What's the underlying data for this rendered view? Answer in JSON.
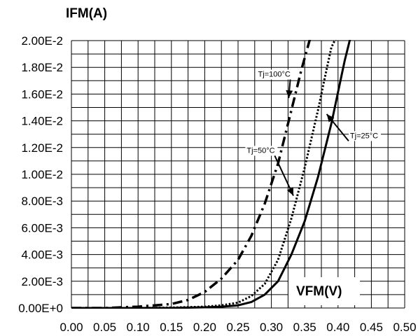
{
  "chart_data": {
    "type": "line",
    "ylabel": "IFM(A)",
    "xlabel": "VFM(V)",
    "xlim": [
      0,
      0.5
    ],
    "ylim": [
      0,
      0.02
    ],
    "grid": true,
    "x_ticks": [
      "0.00",
      "0.05",
      "0.10",
      "0.15",
      "0.20",
      "0.25",
      "0.30",
      "0.35",
      "0.40",
      "0.45",
      "0.50"
    ],
    "y_ticks": [
      "0.00E+0",
      "2.00E-3",
      "4.00E-3",
      "6.00E-3",
      "8.00E-3",
      "1.00E-2",
      "1.20E-2",
      "1.40E-2",
      "1.60E-2",
      "1.80E-2",
      "2.00E-2"
    ],
    "series": [
      {
        "name": "Tj=25°C",
        "style": "solid",
        "x": [
          0.0,
          0.1,
          0.15,
          0.2,
          0.225,
          0.25,
          0.27,
          0.29,
          0.31,
          0.33,
          0.35,
          0.37,
          0.39,
          0.41,
          0.42
        ],
        "y": [
          0.0,
          0.0,
          0.0,
          5e-05,
          0.0001,
          0.0002,
          0.00045,
          0.001,
          0.002,
          0.004,
          0.0065,
          0.0098,
          0.0138,
          0.0185,
          0.0205
        ]
      },
      {
        "name": "Tj=50°C",
        "style": "dotted",
        "x": [
          0.0,
          0.1,
          0.15,
          0.2,
          0.225,
          0.25,
          0.27,
          0.29,
          0.31,
          0.33,
          0.35,
          0.37,
          0.38,
          0.39,
          0.4
        ],
        "y": [
          0.0,
          0.0,
          3e-05,
          0.0001,
          0.0002,
          0.0004,
          0.0009,
          0.0018,
          0.0036,
          0.0067,
          0.0105,
          0.0148,
          0.0172,
          0.0195,
          0.0205
        ]
      },
      {
        "name": "Tj=100°C",
        "style": "dashdot",
        "x": [
          0.0,
          0.05,
          0.1,
          0.125,
          0.15,
          0.175,
          0.2,
          0.225,
          0.25,
          0.27,
          0.29,
          0.31,
          0.33,
          0.345,
          0.36
        ],
        "y": [
          0.0,
          0.0,
          0.0001,
          0.0002,
          0.0003,
          0.0006,
          0.0012,
          0.0022,
          0.0036,
          0.0054,
          0.0078,
          0.0108,
          0.0148,
          0.0178,
          0.0205
        ]
      }
    ],
    "annotations": [
      {
        "text": "Tj=100°C",
        "x": 0.28,
        "y": 0.0173,
        "arrow_to": [
          0.326,
          0.0157
        ]
      },
      {
        "text": "Tj=50°C",
        "x": 0.263,
        "y": 0.0116,
        "arrow_to": [
          0.333,
          0.0084
        ]
      },
      {
        "text": "Tj=25°C",
        "x": 0.418,
        "y": 0.0127,
        "arrow_to": [
          0.383,
          0.0145
        ]
      }
    ]
  }
}
